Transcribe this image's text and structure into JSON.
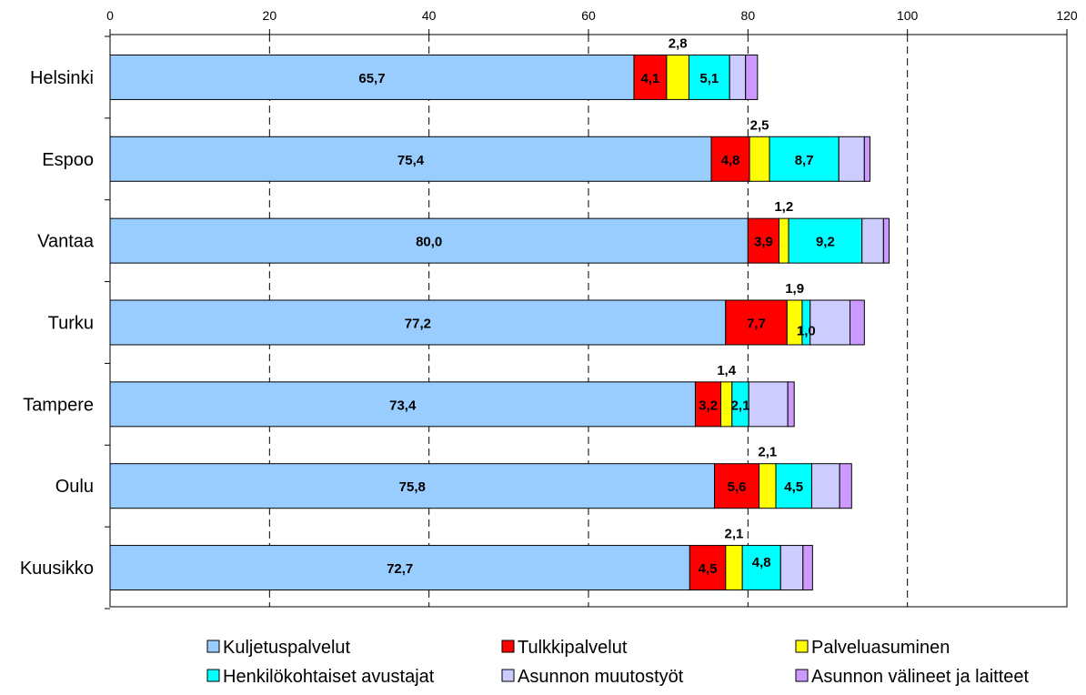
{
  "chart_data": {
    "type": "bar",
    "orientation": "horizontal",
    "stacked": true,
    "title": "",
    "xlabel": "",
    "ylabel": "",
    "xlim": [
      0,
      120
    ],
    "x_ticks": [
      0,
      20,
      40,
      60,
      80,
      100,
      120
    ],
    "x_axis_position": "top",
    "grid": "vertical dashed",
    "legend_position": "bottom",
    "categories": [
      "Helsinki",
      "Espoo",
      "Vantaa",
      "Turku",
      "Tampere",
      "Oulu",
      "Kuusikko"
    ],
    "series": [
      {
        "name": "Kuljetuspalvelut",
        "color": "#99ccff",
        "values": [
          65.7,
          75.4,
          80.0,
          77.2,
          73.4,
          75.8,
          72.7
        ],
        "labels": [
          "65,7",
          "75,4",
          "80,0",
          "77,2",
          "73,4",
          "75,8",
          "72,7"
        ]
      },
      {
        "name": "Tulkkipalvelut",
        "color": "#ff0000",
        "values": [
          4.1,
          4.8,
          3.9,
          7.7,
          3.2,
          5.6,
          4.5
        ],
        "labels": [
          "4,1",
          "4,8",
          "3,9",
          "7,7",
          "3,2",
          "5,6",
          "4,5"
        ]
      },
      {
        "name": "Palveluasuminen",
        "color": "#ffff00",
        "values": [
          2.8,
          2.5,
          1.2,
          1.9,
          1.4,
          2.1,
          2.1
        ],
        "labels": [
          "2,8",
          "2,5",
          "1,2",
          "1,9",
          "1,4",
          "2,1",
          "2,1"
        ]
      },
      {
        "name": "Henkilökohtaiset avustajat",
        "color": "#00ffff",
        "values": [
          5.1,
          8.7,
          9.2,
          1.0,
          2.1,
          4.5,
          4.8
        ],
        "labels": [
          "5,1",
          "8,7",
          "9,2",
          "1,0",
          "2,1",
          "4,5",
          "4,8"
        ]
      },
      {
        "name": "Asunnon muutostyöt",
        "color": "#ccccff",
        "values": [
          2.0,
          3.2,
          2.7,
          5.0,
          4.9,
          3.5,
          2.8
        ],
        "labels": [
          "",
          "",
          "",
          "",
          "",
          "",
          ""
        ]
      },
      {
        "name": "Asunnon välineet ja laitteet",
        "color": "#cc99ff",
        "values": [
          1.5,
          0.7,
          0.7,
          1.8,
          0.8,
          1.5,
          1.2
        ],
        "labels": [
          "",
          "",
          "",
          "",
          "",
          "",
          ""
        ]
      }
    ]
  }
}
